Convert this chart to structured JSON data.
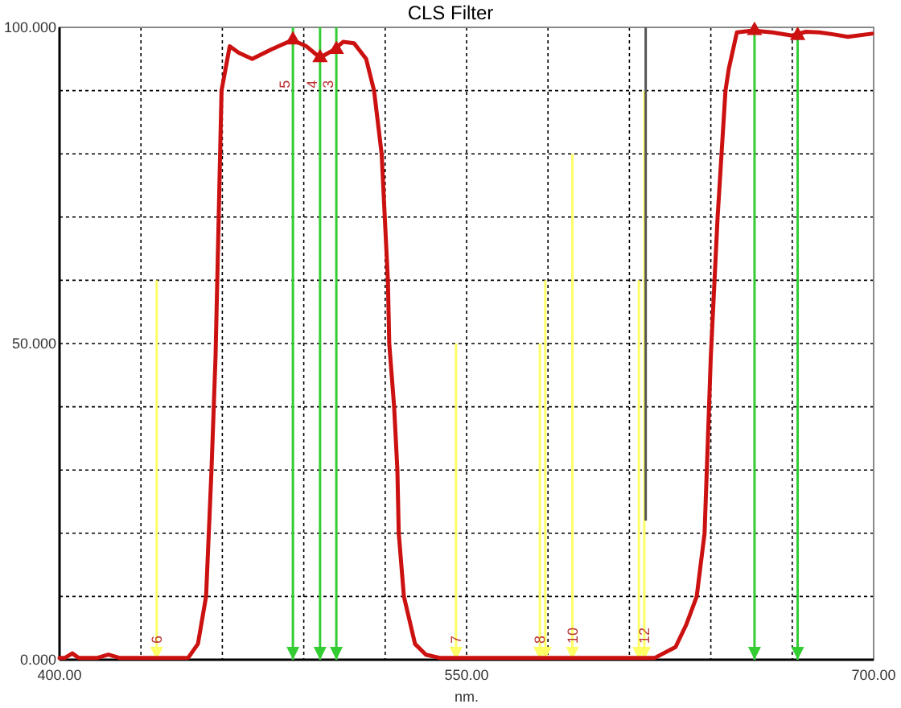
{
  "chart_data": {
    "type": "line",
    "title": "CLS Filter",
    "xlabel": "nm.",
    "xlim": [
      400,
      700
    ],
    "ylim": [
      0,
      100
    ],
    "xticks": [
      {
        "value": 400,
        "label": "400.00"
      },
      {
        "value": 430,
        "label": null
      },
      {
        "value": 460,
        "label": null
      },
      {
        "value": 490,
        "label": null
      },
      {
        "value": 520,
        "label": null
      },
      {
        "value": 550,
        "label": "550.00"
      },
      {
        "value": 580,
        "label": null
      },
      {
        "value": 610,
        "label": null
      },
      {
        "value": 640,
        "label": null
      },
      {
        "value": 670,
        "label": null
      },
      {
        "value": 700,
        "label": "700.00"
      }
    ],
    "yticks": [
      {
        "value": 0,
        "label": "0.000"
      },
      {
        "value": 10,
        "label": null
      },
      {
        "value": 20,
        "label": null
      },
      {
        "value": 30,
        "label": null
      },
      {
        "value": 40,
        "label": null
      },
      {
        "value": 50,
        "label": "50.000"
      },
      {
        "value": 60,
        "label": null
      },
      {
        "value": 70,
        "label": null
      },
      {
        "value": 80,
        "label": null
      },
      {
        "value": 90,
        "label": null
      },
      {
        "value": 100,
        "label": "100.000"
      }
    ],
    "grid": true,
    "series": [
      {
        "type": "bar",
        "color": "#ffff66",
        "x": [
          435.8,
          546.1,
          577,
          579,
          589,
          613.5,
          615.5
        ],
        "values": [
          60,
          50,
          50,
          60,
          80,
          60,
          90
        ]
      },
      {
        "type": "bar",
        "color": "#555555",
        "x": [
          616
        ],
        "base": [
          22
        ],
        "values": [
          78
        ]
      },
      {
        "color": "#cc1111",
        "x": [
          400,
          402,
          404.7,
          407,
          414,
          418,
          422,
          440,
          447.4,
          451,
          454,
          456,
          457.5,
          459.7,
          462.7,
          466,
          471,
          478,
          485.8,
          491,
          496,
          500.8,
          504.5,
          508.5,
          513,
          515.9,
          518.7,
          521,
          521.5,
          523.3,
          524.5,
          525,
          526.9,
          531,
          535,
          540,
          560,
          580,
          600,
          619.4,
          627,
          631,
          634.8,
          637.7,
          640,
          642.5,
          645.4,
          646.6,
          649.6,
          655.5,
          662.6,
          670,
          675,
          680,
          685,
          690.5,
          699.4
        ],
        "values": [
          0.3,
          0.3,
          1,
          0.3,
          0.3,
          0.8,
          0.3,
          0.3,
          0.3,
          2.5,
          10,
          30,
          48,
          90,
          97,
          96,
          95,
          96.5,
          98,
          97,
          95.2,
          96.4,
          97.7,
          97.5,
          95,
          90,
          80,
          60,
          50,
          40,
          30,
          20,
          10,
          2.5,
          0.8,
          0.3,
          0.3,
          0.3,
          0.3,
          0.3,
          2,
          5.6,
          10,
          20,
          48,
          70,
          90,
          93.4,
          99.2,
          99.5,
          99.2,
          98.7,
          99.3,
          99.2,
          98.9,
          98.5,
          99
        ]
      },
      {
        "type": "scatter",
        "color": "#cc1111",
        "marker": "triangle",
        "x": [
          486,
          496,
          502,
          656.1,
          672
        ],
        "values": [
          98,
          95.2,
          96.5,
          99.5,
          98.7
        ]
      }
    ],
    "ref_lines": [
      {
        "axis": "x",
        "value": 486,
        "color": "#33cc33"
      },
      {
        "axis": "x",
        "value": 496,
        "color": "#33cc33"
      },
      {
        "axis": "x",
        "value": 502,
        "color": "#33cc33"
      },
      {
        "axis": "x",
        "value": 656.1,
        "color": "#33cc33"
      },
      {
        "axis": "x",
        "value": 672,
        "color": "#33cc33"
      }
    ],
    "annotations": [
      {
        "text": "5",
        "x": 486,
        "y": 91
      },
      {
        "text": "4",
        "x": 496,
        "y": 91
      },
      {
        "text": "3",
        "x": 502,
        "y": 91
      },
      {
        "text": "6",
        "x": 435.8,
        "y": 0
      },
      {
        "text": "7",
        "x": 546.1,
        "y": 0
      },
      {
        "text": "8",
        "x": 577,
        "y": 0
      },
      {
        "text": "10",
        "x": 589,
        "y": 0
      },
      {
        "text": "12",
        "x": 615.5,
        "y": 0
      }
    ]
  }
}
